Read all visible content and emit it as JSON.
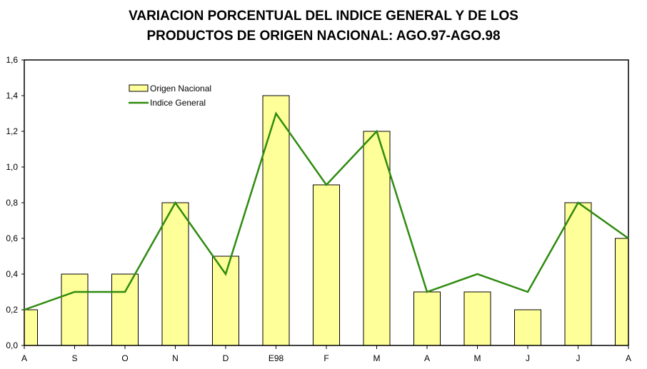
{
  "chart_data": {
    "type": "bar",
    "title_lines": [
      "VARIACION PORCENTUAL DEL INDICE GENERAL Y DE LOS",
      "PRODUCTOS DE ORIGEN NACIONAL: AGO.97-AGO.98"
    ],
    "xlabel": "",
    "ylabel": "",
    "categories": [
      "A",
      "S",
      "O",
      "N",
      "D",
      "E98",
      "F",
      "M",
      "A",
      "M",
      "J",
      "J",
      "A"
    ],
    "ylim": [
      0,
      1.6
    ],
    "yticks": [
      0,
      0.2,
      0.4,
      0.6,
      0.8,
      1.0,
      1.2,
      1.4,
      1.6
    ],
    "ytick_labels": [
      "0,0",
      "0,2",
      "0,4",
      "0,6",
      "0,8",
      "1,0",
      "1,2",
      "1,4",
      "1,6"
    ],
    "grid": false,
    "legend_position": "top-left",
    "series": [
      {
        "name": "Origen Nacional",
        "type": "bar",
        "color": "#FFFF99",
        "values": [
          0.2,
          0.4,
          0.4,
          0.8,
          0.5,
          1.4,
          0.9,
          1.2,
          0.3,
          0.3,
          0.2,
          0.8,
          0.6
        ]
      },
      {
        "name": "Indice General",
        "type": "line",
        "color": "#2E8B0E",
        "values": [
          0.2,
          0.3,
          0.3,
          0.8,
          0.4,
          1.3,
          0.9,
          1.2,
          0.3,
          0.4,
          0.3,
          0.8,
          0.6
        ]
      }
    ]
  }
}
